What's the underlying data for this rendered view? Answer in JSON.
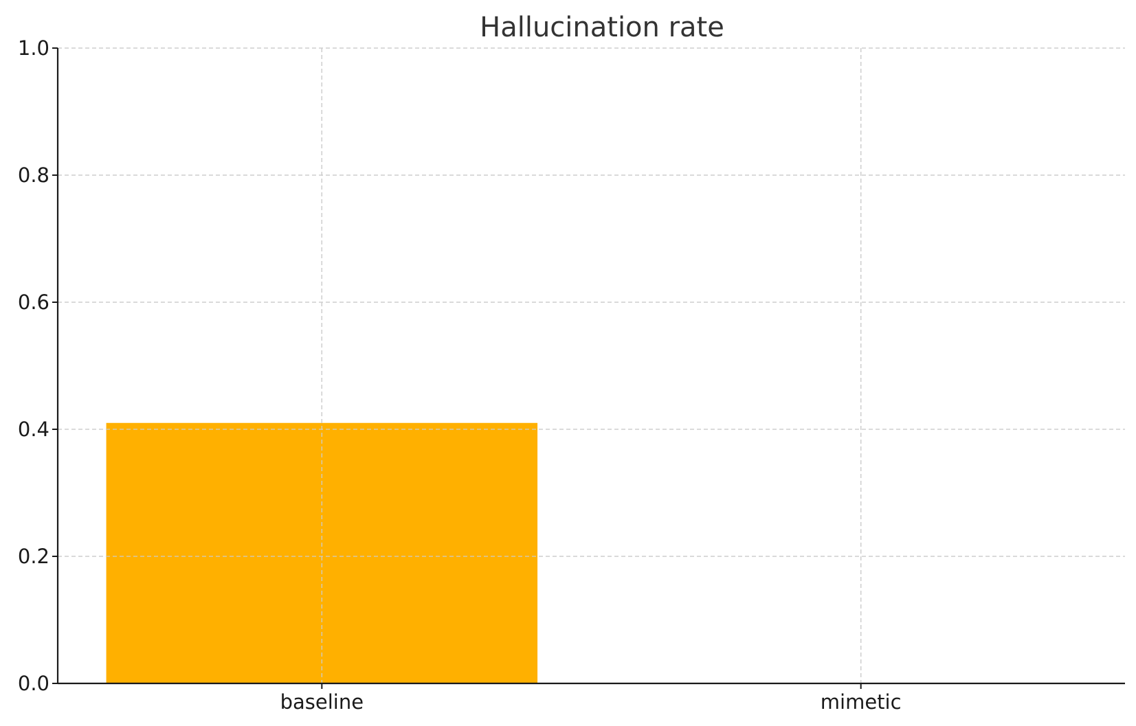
{
  "chart_data": {
    "type": "bar",
    "title": "Hallucination rate",
    "xlabel": "",
    "ylabel": "",
    "categories": [
      "baseline",
      "mimetic"
    ],
    "values": [
      0.41,
      0.0
    ],
    "ylim": [
      0,
      1.0
    ],
    "yticks": [
      "0.0",
      "0.2",
      "0.4",
      "0.6",
      "0.8",
      "1.0"
    ],
    "grid": true,
    "bar_color": "#FFB000"
  }
}
